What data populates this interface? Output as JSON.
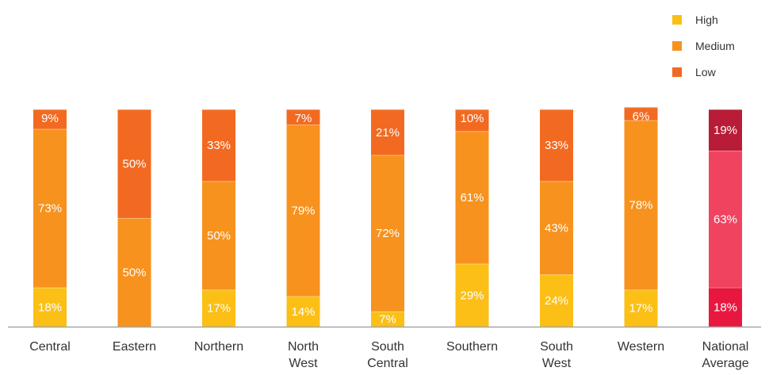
{
  "chart_data": {
    "type": "bar",
    "stacked": true,
    "orientation": "vertical",
    "percent_stacked": true,
    "categories": [
      "Central",
      "Eastern",
      "Northern",
      "North West",
      "South Central",
      "Southern",
      "South West",
      "Western",
      "National Average"
    ],
    "series": [
      {
        "name": "High",
        "color": "#fbbf16",
        "values": [
          18,
          0,
          17,
          14,
          7,
          29,
          24,
          17,
          18
        ]
      },
      {
        "name": "Medium",
        "color": "#f7921e",
        "values": [
          73,
          50,
          50,
          79,
          72,
          61,
          43,
          78,
          63
        ]
      },
      {
        "name": "Low",
        "color": "#f26a21",
        "values": [
          9,
          50,
          33,
          7,
          21,
          10,
          33,
          6,
          19
        ]
      }
    ],
    "data_labels": [
      [
        "18%",
        "",
        "17%",
        "14%",
        "7%",
        "29%",
        "24%",
        "17%",
        "18%"
      ],
      [
        "73%",
        "50%",
        "50%",
        "79%",
        "72%",
        "61%",
        "43%",
        "78%",
        "63%"
      ],
      [
        "9%",
        "50%",
        "33%",
        "7%",
        "21%",
        "10%",
        "33%",
        "6%",
        "19%"
      ]
    ],
    "highlight_category": "National Average",
    "highlight_colors": [
      "#e8173f",
      "#f0435f",
      "#b81c36"
    ],
    "ylim": [
      0,
      100
    ],
    "title": "",
    "xlabel": "",
    "ylabel": "",
    "grid": false,
    "legend_position": "top-right"
  }
}
